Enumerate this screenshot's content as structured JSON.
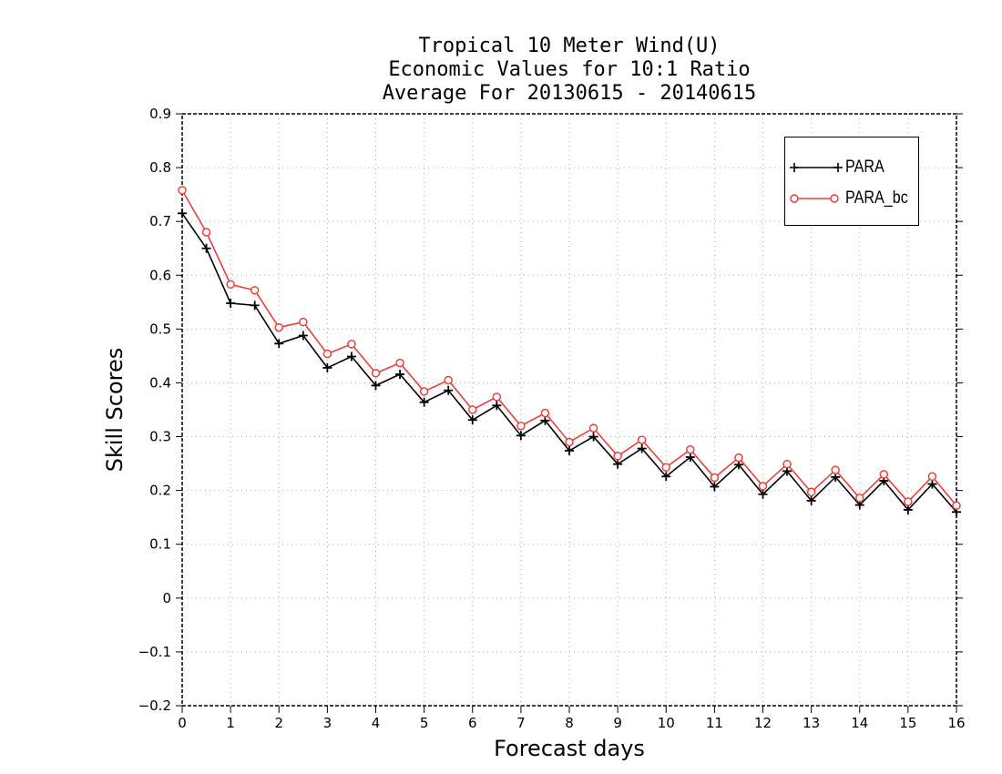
{
  "chart_data": {
    "type": "line",
    "title_lines": [
      "Tropical 10 Meter Wind(U)",
      "Economic Values for 10:1 Ratio",
      "Average For 20130615 - 20140615"
    ],
    "xlabel": "Forecast days",
    "ylabel": "Skill Scores",
    "xlim": [
      0,
      16
    ],
    "ylim": [
      -0.2,
      0.9
    ],
    "xticks": [
      "0",
      "1",
      "2",
      "3",
      "4",
      "5",
      "6",
      "7",
      "8",
      "9",
      "10",
      "11",
      "12",
      "13",
      "14",
      "15",
      "16"
    ],
    "yticks": [
      "−0.2",
      "−0.1",
      "0",
      "0.1",
      "0.2",
      "0.3",
      "0.4",
      "0.5",
      "0.6",
      "0.7",
      "0.8",
      "0.9"
    ],
    "grid": true,
    "legend_position": "top-right",
    "x": [
      0,
      0.5,
      1,
      1.5,
      2,
      2.5,
      3,
      3.5,
      4,
      4.5,
      5,
      5.5,
      6,
      6.5,
      7,
      7.5,
      8,
      8.5,
      9,
      9.5,
      10,
      10.5,
      11,
      11.5,
      12,
      12.5,
      13,
      13.5,
      14,
      14.5,
      15,
      15.5,
      16
    ],
    "series": [
      {
        "name": "PARA",
        "color": "#000000",
        "marker": "plus",
        "values": [
          0.715,
          0.65,
          0.548,
          0.544,
          0.473,
          0.488,
          0.428,
          0.449,
          0.395,
          0.416,
          0.364,
          0.386,
          0.331,
          0.358,
          0.302,
          0.33,
          0.274,
          0.3,
          0.249,
          0.278,
          0.226,
          0.262,
          0.207,
          0.248,
          0.193,
          0.236,
          0.181,
          0.225,
          0.173,
          0.218,
          0.164,
          0.212,
          0.16
        ]
      },
      {
        "name": "PARA_bc",
        "color": "#e8403a",
        "marker": "circle",
        "values": [
          0.758,
          0.68,
          0.583,
          0.572,
          0.503,
          0.513,
          0.454,
          0.472,
          0.418,
          0.437,
          0.384,
          0.405,
          0.35,
          0.374,
          0.32,
          0.344,
          0.29,
          0.316,
          0.264,
          0.294,
          0.243,
          0.276,
          0.224,
          0.261,
          0.208,
          0.249,
          0.197,
          0.238,
          0.186,
          0.23,
          0.179,
          0.226,
          0.172
        ]
      }
    ]
  }
}
